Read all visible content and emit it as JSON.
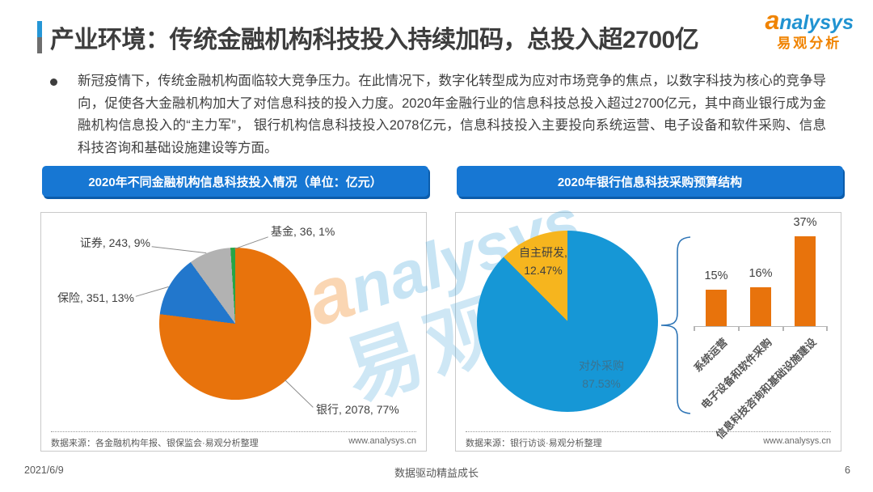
{
  "page": {
    "title": "产业环境：传统金融机构科技投入持续加码，总投入超2700亿",
    "footer": {
      "date": "2021/6/9",
      "slogan": "数据驱动精益成长",
      "page_number": "6"
    }
  },
  "logo": {
    "brand_a": "a",
    "brand_rest": "nalysys",
    "brand_cn": "易观分析"
  },
  "watermark": {
    "brand_a": "a",
    "brand_rest": "nalysys",
    "brand_cn": "易观"
  },
  "intro": {
    "bullet_text": "新冠疫情下，传统金融机构面临较大竞争压力。在此情况下，数字化转型成为应对市场竞争的焦点，以数字科技为核心的竞争导向，促使各大金融机构加大了对信息科技的投入力度。2020年金融行业的信息科技总投入超过2700亿元，其中商业银行成为金融机构信息投入的“主力军”， 银行机构信息科技投入2078亿元，信息科技投入主要投向系统运营、电子设备和软件采购、信息科技咨询和基础设施建设等方面。"
  },
  "charts": {
    "left": {
      "header": "2020年不同金融机构信息科技投入情况（单位：亿元）",
      "callouts": {
        "fund": "基金, 36, 1%",
        "securities": "证券, 243, 9%",
        "insurance": "保险, 351, 13%",
        "bank": "银行, 2078, 77%"
      },
      "source": "数据来源：各金融机构年报、银保监会·易观分析整理",
      "site": "www.analysys.cn"
    },
    "right": {
      "header": "2020年银行信息科技采购预算结构",
      "pie_labels": {
        "self_name": "自主研发,",
        "self_pct": "12.47%",
        "outsource_name": "对外采购",
        "outsource_pct": "87.53%"
      },
      "bar_values": [
        "15%",
        "16%",
        "37%"
      ],
      "source": "数据来源：银行访谈·易观分析整理",
      "site": "www.analysys.cn"
    }
  },
  "colors": {
    "header_bg": "#1777D3",
    "header_shadow": "#0B5CAB",
    "accent_blue": "#2596D6",
    "bank_orange": "#E8730C",
    "insurance_blue": "#2277CC",
    "securities_gray": "#B2B2B2",
    "fund_green": "#27A546",
    "outsource_blue": "#1697D6",
    "self_yellow": "#F6B51E",
    "bar_orange": "#E8730C",
    "bracket_blue": "#2E75B6"
  },
  "chart_data": [
    {
      "type": "pie",
      "title": "2020年不同金融机构信息科技投入情况（单位：亿元）",
      "unit": "亿元",
      "start_angle_deg": 0,
      "direction": "clockwise",
      "slices": [
        {
          "label": "银行",
          "value": 2078,
          "pct": 77,
          "color": "#E8730C"
        },
        {
          "label": "保险",
          "value": 351,
          "pct": 13,
          "color": "#2277CC"
        },
        {
          "label": "证券",
          "value": 243,
          "pct": 9,
          "color": "#B2B2B2"
        },
        {
          "label": "基金",
          "value": 36,
          "pct": 1,
          "color": "#27A546"
        }
      ]
    },
    {
      "type": "pie",
      "title": "2020年银行信息科技采购预算结构",
      "start_angle_deg": 0,
      "direction": "clockwise",
      "slices": [
        {
          "label": "对外采购",
          "pct": 87.53,
          "color": "#1697D6"
        },
        {
          "label": "自主研发",
          "pct": 12.47,
          "color": "#F6B51E"
        }
      ]
    },
    {
      "type": "bar",
      "categories": [
        "系统运营",
        "电子设备和软件采购",
        "信息科技咨询和基础设施建设"
      ],
      "values": [
        15,
        16,
        37
      ],
      "unit": "%",
      "bar_color": "#E8730C",
      "ylim": [
        0,
        40
      ]
    }
  ]
}
